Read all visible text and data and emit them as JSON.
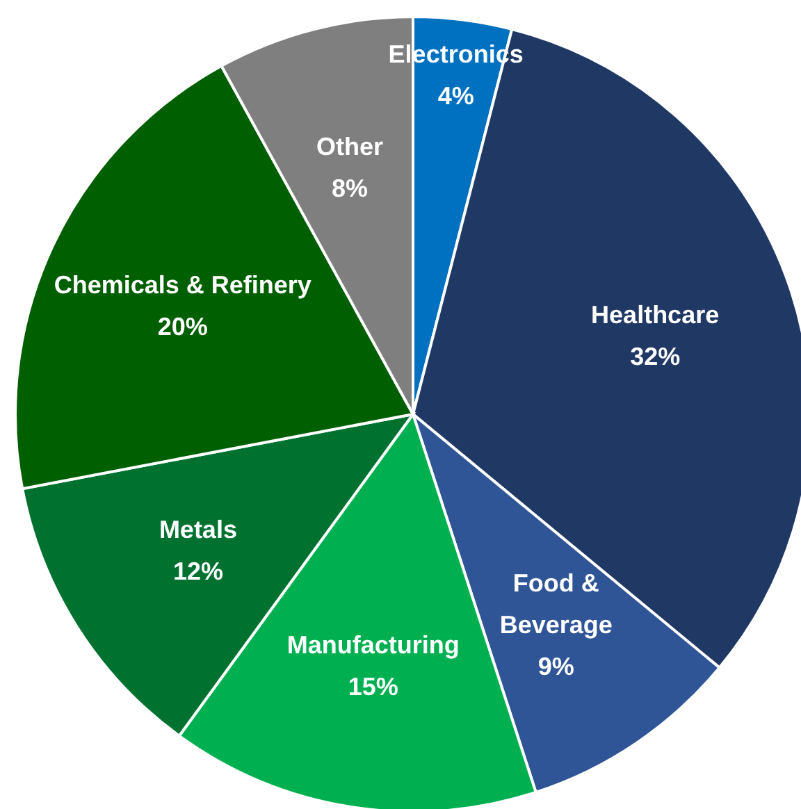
{
  "chart_data": {
    "type": "pie",
    "categories": [
      "Electronics",
      "Healthcare",
      "Food & Beverage",
      "Manufacturing",
      "Metals",
      "Chemicals & Refinery",
      "Other"
    ],
    "values": [
      4,
      32,
      9,
      15,
      12,
      20,
      8
    ],
    "colors": [
      "#0070c0",
      "#203864",
      "#2f5597",
      "#00b050",
      "#00712f",
      "#005f00",
      "#7f7f7f"
    ],
    "value_labels": [
      "4%",
      "32%",
      "9%",
      "15%",
      "12%",
      "20%",
      "8%"
    ]
  }
}
